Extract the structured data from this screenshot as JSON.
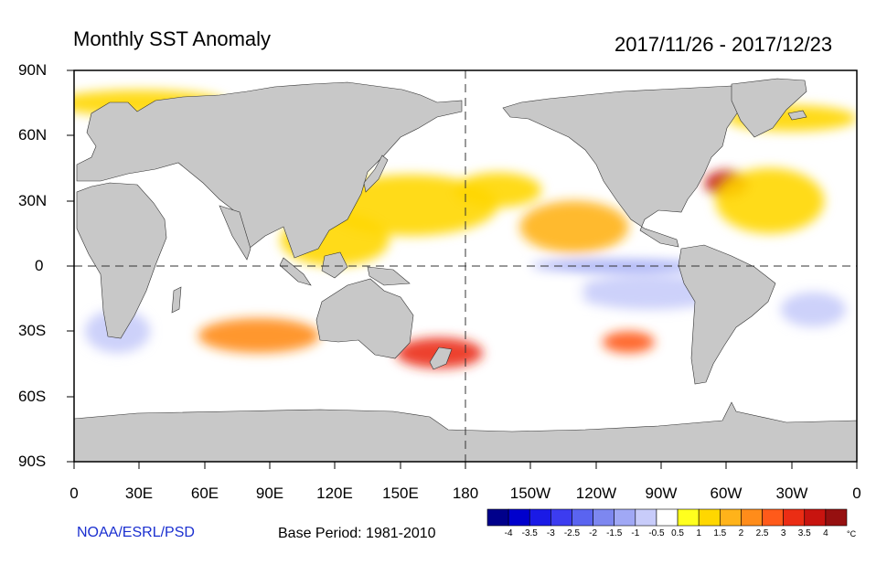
{
  "header": {
    "title": "Monthly SST Anomaly",
    "date_range": "2017/11/26 - 2017/12/23"
  },
  "axes": {
    "y_ticks": [
      "90N",
      "60N",
      "30N",
      "0",
      "30S",
      "60S",
      "90S"
    ],
    "x_ticks": [
      "0",
      "30E",
      "60E",
      "90E",
      "120E",
      "150E",
      "180",
      "150W",
      "120W",
      "90W",
      "60W",
      "30W",
      "0"
    ],
    "lon_range": [
      0,
      360
    ],
    "lat_range": [
      -90,
      90
    ],
    "reference_lines": [
      "equator",
      "180 meridian"
    ]
  },
  "footer": {
    "credit": "NOAA/ESRL/PSD",
    "base_period": "Base Period: 1981-2010"
  },
  "colorbar": {
    "unit": "°C",
    "labels": [
      "-4",
      "-3.5",
      "-3",
      "-2.5",
      "-2",
      "-1.5",
      "-1",
      "-0.5",
      "0.5",
      "1",
      "1.5",
      "2",
      "2.5",
      "3",
      "3.5",
      "4"
    ],
    "colors": [
      "#00008b",
      "#0000cd",
      "#1a1ae6",
      "#3c3cf0",
      "#5a64f0",
      "#7d87f0",
      "#a0a8f5",
      "#c8ccfa",
      "#ffffff",
      "#ffff1e",
      "#ffd700",
      "#ffb31a",
      "#ff8c1a",
      "#ff5a1a",
      "#eb2d14",
      "#c8140f",
      "#961010"
    ]
  },
  "colors": {
    "land": "#c8c8c8",
    "ocean_neutral": "#ffffff"
  },
  "chart_data": {
    "type": "heatmap",
    "title": "Monthly SST Anomaly",
    "subtitle": "2017/11/26 - 2017/12/23",
    "x_range": [
      0,
      360
    ],
    "y_range": [
      -90,
      90
    ],
    "grid": false,
    "regions": [
      {
        "lon": 155,
        "lat": 28,
        "rlon": 40,
        "rlat": 14,
        "anomaly": 1.0
      },
      {
        "lon": 120,
        "lat": 12,
        "rlon": 25,
        "rlat": 12,
        "anomaly": 1.0
      },
      {
        "lon": 230,
        "lat": 18,
        "rlon": 25,
        "rlat": 12,
        "anomaly": 1.5
      },
      {
        "lon": 195,
        "lat": 35,
        "rlon": 20,
        "rlat": 8,
        "anomaly": 1.0
      },
      {
        "lon": 300,
        "lat": 38,
        "rlon": 10,
        "rlat": 6,
        "anomaly": 3.5
      },
      {
        "lon": 320,
        "lat": 30,
        "rlon": 25,
        "rlat": 15,
        "anomaly": 1.0
      },
      {
        "lon": 85,
        "lat": -32,
        "rlon": 28,
        "rlat": 8,
        "anomaly": 2.0
      },
      {
        "lon": 168,
        "lat": -40,
        "rlon": 20,
        "rlat": 7,
        "anomaly": 3.0
      },
      {
        "lon": 255,
        "lat": -35,
        "rlon": 12,
        "rlat": 5,
        "anomaly": 2.5
      },
      {
        "lon": 30,
        "lat": 75,
        "rlon": 40,
        "rlat": 6,
        "anomaly": 1.0
      },
      {
        "lon": 330,
        "lat": 68,
        "rlon": 30,
        "rlat": 6,
        "anomaly": 1.0
      },
      {
        "lon": 250,
        "lat": 0,
        "rlon": 40,
        "rlat": 3,
        "anomaly": -1.5
      },
      {
        "lon": 265,
        "lat": -12,
        "rlon": 35,
        "rlat": 8,
        "anomaly": -1.0
      },
      {
        "lon": 20,
        "lat": -30,
        "rlon": 15,
        "rlat": 10,
        "anomaly": -1.0
      },
      {
        "lon": 205,
        "lat": -12,
        "rlon": 30,
        "rlat": 10,
        "anomaly": -0.5
      },
      {
        "lon": 340,
        "lat": -20,
        "rlon": 15,
        "rlat": 8,
        "anomaly": -1.0
      }
    ]
  }
}
